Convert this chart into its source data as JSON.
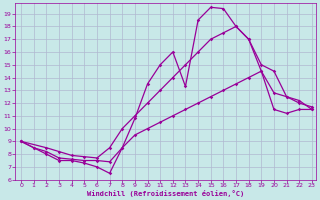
{
  "bg_color": "#c8e8e8",
  "line_color": "#990099",
  "grid_color": "#b0b8d0",
  "xlabel": "Windchill (Refroidissement éolien,°C)",
  "xlabel_color": "#990099",
  "tick_color": "#990099",
  "xlim": [
    -0.5,
    23.3
  ],
  "ylim": [
    6,
    19.8
  ],
  "yticks": [
    6,
    7,
    8,
    9,
    10,
    11,
    12,
    13,
    14,
    15,
    16,
    17,
    18,
    19
  ],
  "xticks": [
    0,
    1,
    2,
    3,
    4,
    5,
    6,
    7,
    8,
    9,
    10,
    11,
    12,
    13,
    14,
    15,
    16,
    17,
    18,
    19,
    20,
    21,
    22,
    23
  ],
  "curve1_x": [
    0,
    1,
    2,
    3,
    4,
    5,
    6,
    7,
    8,
    9,
    10,
    11,
    12,
    13,
    14,
    15,
    16,
    17,
    18,
    19,
    20,
    21,
    22,
    23
  ],
  "curve1_y": [
    9.0,
    8.5,
    8.0,
    7.5,
    7.5,
    7.3,
    7.0,
    6.5,
    8.5,
    10.8,
    13.5,
    15.0,
    16.0,
    13.3,
    18.5,
    19.5,
    19.4,
    18.0,
    17.0,
    14.5,
    12.8,
    12.5,
    12.0,
    11.7
  ],
  "curve2_x": [
    0,
    2,
    3,
    4,
    5,
    6,
    7,
    8,
    9,
    10,
    11,
    12,
    13,
    14,
    15,
    16,
    17,
    18,
    19,
    20,
    21,
    22,
    23
  ],
  "curve2_y": [
    9.0,
    8.5,
    8.2,
    7.9,
    7.8,
    7.7,
    8.5,
    10.0,
    11.0,
    12.0,
    13.0,
    14.0,
    15.0,
    16.0,
    17.0,
    17.5,
    18.0,
    17.0,
    15.0,
    14.5,
    12.5,
    12.2,
    11.5
  ],
  "curve3_x": [
    0,
    1,
    2,
    3,
    4,
    5,
    6,
    7,
    8,
    9,
    10,
    11,
    12,
    13,
    14,
    15,
    16,
    17,
    18,
    19,
    20,
    21,
    22,
    23
  ],
  "curve3_y": [
    9.0,
    8.5,
    8.2,
    7.7,
    7.6,
    7.5,
    7.5,
    7.4,
    8.5,
    9.5,
    10.0,
    10.5,
    11.0,
    11.5,
    12.0,
    12.5,
    13.0,
    13.5,
    14.0,
    14.5,
    11.5,
    11.2,
    11.5,
    11.5
  ]
}
